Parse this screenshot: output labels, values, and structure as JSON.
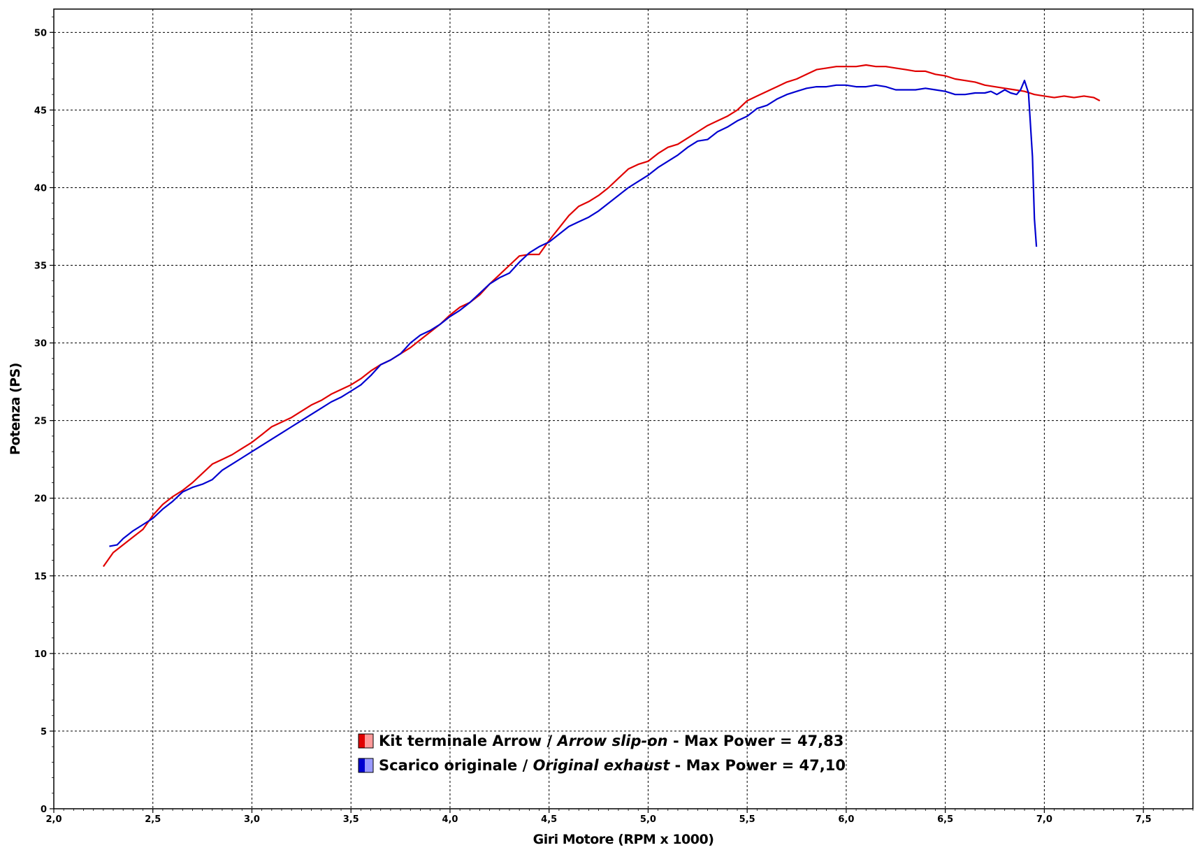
{
  "chart_data": {
    "type": "line",
    "title": "",
    "xlabel": "Giri Motore (RPM x 1000)",
    "ylabel": "Potenza (PS)",
    "xlim": [
      2.0,
      7.75
    ],
    "ylim": [
      0,
      51.5
    ],
    "x_ticks": [
      2.0,
      2.5,
      3.0,
      3.5,
      4.0,
      4.5,
      5.0,
      5.5,
      6.0,
      6.5,
      7.0,
      7.5
    ],
    "x_tick_labels": [
      "2,0",
      "2,5",
      "3,0",
      "3,5",
      "4,0",
      "4,5",
      "5,0",
      "5,5",
      "6,0",
      "6,5",
      "7,0",
      "7,5"
    ],
    "y_ticks": [
      0,
      5,
      10,
      15,
      20,
      25,
      30,
      35,
      40,
      45,
      50
    ],
    "y_tick_labels": [
      "0",
      "5",
      "10",
      "15",
      "20",
      "25",
      "30",
      "35",
      "40",
      "45",
      "50"
    ],
    "grid": true,
    "legend_position": "bottom-center",
    "series": [
      {
        "name_parts": [
          "Kit terminale Arrow / ",
          "Arrow slip-on",
          " - Max Power = 47,83"
        ],
        "color": "#e00000",
        "swatch_light": "#ff9a9a",
        "points": [
          [
            2.25,
            15.6
          ],
          [
            2.3,
            16.5
          ],
          [
            2.35,
            17.0
          ],
          [
            2.4,
            17.5
          ],
          [
            2.45,
            18.0
          ],
          [
            2.5,
            18.9
          ],
          [
            2.55,
            19.6
          ],
          [
            2.6,
            20.1
          ],
          [
            2.65,
            20.5
          ],
          [
            2.7,
            21.0
          ],
          [
            2.75,
            21.6
          ],
          [
            2.8,
            22.2
          ],
          [
            2.85,
            22.5
          ],
          [
            2.9,
            22.8
          ],
          [
            2.95,
            23.2
          ],
          [
            3.0,
            23.6
          ],
          [
            3.05,
            24.1
          ],
          [
            3.1,
            24.6
          ],
          [
            3.15,
            24.9
          ],
          [
            3.2,
            25.2
          ],
          [
            3.25,
            25.6
          ],
          [
            3.3,
            26.0
          ],
          [
            3.35,
            26.3
          ],
          [
            3.4,
            26.7
          ],
          [
            3.45,
            27.0
          ],
          [
            3.5,
            27.3
          ],
          [
            3.55,
            27.7
          ],
          [
            3.6,
            28.2
          ],
          [
            3.65,
            28.6
          ],
          [
            3.7,
            28.9
          ],
          [
            3.75,
            29.3
          ],
          [
            3.8,
            29.7
          ],
          [
            3.85,
            30.2
          ],
          [
            3.9,
            30.7
          ],
          [
            3.95,
            31.2
          ],
          [
            4.0,
            31.8
          ],
          [
            4.05,
            32.3
          ],
          [
            4.1,
            32.6
          ],
          [
            4.15,
            33.1
          ],
          [
            4.2,
            33.8
          ],
          [
            4.25,
            34.4
          ],
          [
            4.3,
            35.0
          ],
          [
            4.35,
            35.6
          ],
          [
            4.4,
            35.7
          ],
          [
            4.45,
            35.7
          ],
          [
            4.5,
            36.6
          ],
          [
            4.55,
            37.4
          ],
          [
            4.6,
            38.2
          ],
          [
            4.65,
            38.8
          ],
          [
            4.7,
            39.1
          ],
          [
            4.75,
            39.5
          ],
          [
            4.8,
            40.0
          ],
          [
            4.85,
            40.6
          ],
          [
            4.9,
            41.2
          ],
          [
            4.95,
            41.5
          ],
          [
            5.0,
            41.7
          ],
          [
            5.05,
            42.2
          ],
          [
            5.1,
            42.6
          ],
          [
            5.15,
            42.8
          ],
          [
            5.2,
            43.2
          ],
          [
            5.25,
            43.6
          ],
          [
            5.3,
            44.0
          ],
          [
            5.35,
            44.3
          ],
          [
            5.4,
            44.6
          ],
          [
            5.45,
            45.0
          ],
          [
            5.5,
            45.6
          ],
          [
            5.55,
            45.9
          ],
          [
            5.6,
            46.2
          ],
          [
            5.65,
            46.5
          ],
          [
            5.7,
            46.8
          ],
          [
            5.75,
            47.0
          ],
          [
            5.8,
            47.3
          ],
          [
            5.85,
            47.6
          ],
          [
            5.9,
            47.7
          ],
          [
            5.95,
            47.8
          ],
          [
            6.0,
            47.8
          ],
          [
            6.05,
            47.8
          ],
          [
            6.1,
            47.9
          ],
          [
            6.15,
            47.8
          ],
          [
            6.2,
            47.8
          ],
          [
            6.25,
            47.7
          ],
          [
            6.3,
            47.6
          ],
          [
            6.35,
            47.5
          ],
          [
            6.4,
            47.5
          ],
          [
            6.45,
            47.3
          ],
          [
            6.5,
            47.2
          ],
          [
            6.55,
            47.0
          ],
          [
            6.6,
            46.9
          ],
          [
            6.65,
            46.8
          ],
          [
            6.7,
            46.6
          ],
          [
            6.75,
            46.5
          ],
          [
            6.8,
            46.4
          ],
          [
            6.85,
            46.3
          ],
          [
            6.9,
            46.2
          ],
          [
            6.95,
            46.0
          ],
          [
            7.0,
            45.9
          ],
          [
            7.05,
            45.8
          ],
          [
            7.1,
            45.9
          ],
          [
            7.15,
            45.8
          ],
          [
            7.2,
            45.9
          ],
          [
            7.25,
            45.8
          ],
          [
            7.28,
            45.6
          ]
        ]
      },
      {
        "name_parts": [
          "Scarico originale / ",
          "Original exhaust",
          " - Max Power = 47,10"
        ],
        "color": "#0000d0",
        "swatch_light": "#9a9aff",
        "points": [
          [
            2.28,
            16.9
          ],
          [
            2.32,
            17.0
          ],
          [
            2.35,
            17.4
          ],
          [
            2.4,
            17.9
          ],
          [
            2.45,
            18.3
          ],
          [
            2.5,
            18.7
          ],
          [
            2.55,
            19.3
          ],
          [
            2.6,
            19.8
          ],
          [
            2.65,
            20.4
          ],
          [
            2.7,
            20.7
          ],
          [
            2.75,
            20.9
          ],
          [
            2.8,
            21.2
          ],
          [
            2.85,
            21.8
          ],
          [
            2.9,
            22.2
          ],
          [
            2.95,
            22.6
          ],
          [
            3.0,
            23.0
          ],
          [
            3.05,
            23.4
          ],
          [
            3.1,
            23.8
          ],
          [
            3.15,
            24.2
          ],
          [
            3.2,
            24.6
          ],
          [
            3.25,
            25.0
          ],
          [
            3.3,
            25.4
          ],
          [
            3.35,
            25.8
          ],
          [
            3.4,
            26.2
          ],
          [
            3.45,
            26.5
          ],
          [
            3.5,
            26.9
          ],
          [
            3.55,
            27.3
          ],
          [
            3.6,
            27.9
          ],
          [
            3.65,
            28.6
          ],
          [
            3.7,
            28.9
          ],
          [
            3.75,
            29.3
          ],
          [
            3.8,
            30.0
          ],
          [
            3.85,
            30.5
          ],
          [
            3.9,
            30.8
          ],
          [
            3.95,
            31.2
          ],
          [
            4.0,
            31.7
          ],
          [
            4.05,
            32.1
          ],
          [
            4.1,
            32.6
          ],
          [
            4.15,
            33.2
          ],
          [
            4.2,
            33.8
          ],
          [
            4.25,
            34.2
          ],
          [
            4.3,
            34.5
          ],
          [
            4.35,
            35.2
          ],
          [
            4.4,
            35.8
          ],
          [
            4.45,
            36.2
          ],
          [
            4.5,
            36.5
          ],
          [
            4.55,
            37.0
          ],
          [
            4.6,
            37.5
          ],
          [
            4.65,
            37.8
          ],
          [
            4.7,
            38.1
          ],
          [
            4.75,
            38.5
          ],
          [
            4.8,
            39.0
          ],
          [
            4.85,
            39.5
          ],
          [
            4.9,
            40.0
          ],
          [
            4.95,
            40.4
          ],
          [
            5.0,
            40.8
          ],
          [
            5.05,
            41.3
          ],
          [
            5.1,
            41.7
          ],
          [
            5.15,
            42.1
          ],
          [
            5.2,
            42.6
          ],
          [
            5.25,
            43.0
          ],
          [
            5.3,
            43.1
          ],
          [
            5.35,
            43.6
          ],
          [
            5.4,
            43.9
          ],
          [
            5.45,
            44.3
          ],
          [
            5.5,
            44.6
          ],
          [
            5.55,
            45.1
          ],
          [
            5.6,
            45.3
          ],
          [
            5.65,
            45.7
          ],
          [
            5.7,
            46.0
          ],
          [
            5.75,
            46.2
          ],
          [
            5.8,
            46.4
          ],
          [
            5.85,
            46.5
          ],
          [
            5.9,
            46.5
          ],
          [
            5.95,
            46.6
          ],
          [
            6.0,
            46.6
          ],
          [
            6.05,
            46.5
          ],
          [
            6.1,
            46.5
          ],
          [
            6.15,
            46.6
          ],
          [
            6.2,
            46.5
          ],
          [
            6.25,
            46.3
          ],
          [
            6.3,
            46.3
          ],
          [
            6.35,
            46.3
          ],
          [
            6.4,
            46.4
          ],
          [
            6.45,
            46.3
          ],
          [
            6.5,
            46.2
          ],
          [
            6.55,
            46.0
          ],
          [
            6.6,
            46.0
          ],
          [
            6.65,
            46.1
          ],
          [
            6.7,
            46.1
          ],
          [
            6.73,
            46.2
          ],
          [
            6.76,
            46.0
          ],
          [
            6.8,
            46.3
          ],
          [
            6.83,
            46.1
          ],
          [
            6.86,
            46.0
          ],
          [
            6.88,
            46.3
          ],
          [
            6.9,
            46.9
          ],
          [
            6.92,
            46.1
          ],
          [
            6.94,
            42.0
          ],
          [
            6.95,
            38.0
          ],
          [
            6.96,
            36.2
          ]
        ]
      }
    ]
  }
}
